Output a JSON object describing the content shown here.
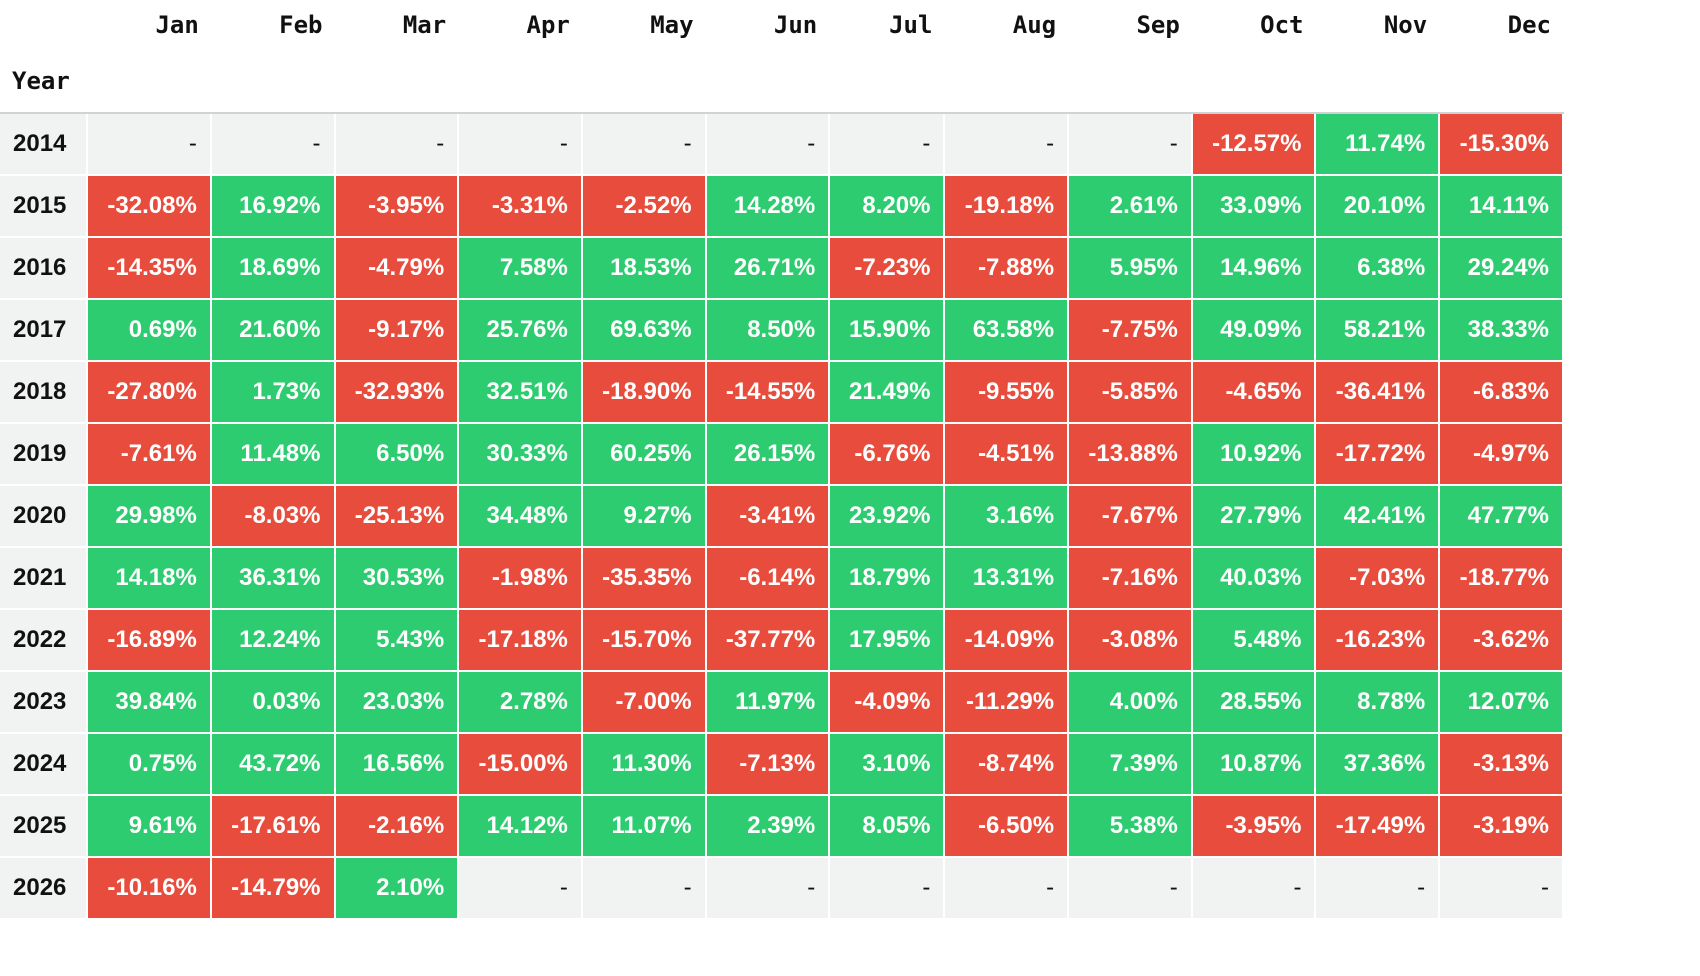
{
  "chart_data": {
    "type": "heatmap",
    "title": "",
    "index_label": "Year",
    "columns": [
      "Jan",
      "Feb",
      "Mar",
      "Apr",
      "May",
      "Jun",
      "Jul",
      "Aug",
      "Sep",
      "Oct",
      "Nov",
      "Dec"
    ],
    "missing_marker": "-",
    "unit": "%",
    "colors": {
      "positive": "#2ecc71",
      "negative": "#e74c3c",
      "empty": "#f1f3f2"
    },
    "rows": [
      {
        "year": "2014",
        "values": [
          null,
          null,
          null,
          null,
          null,
          null,
          null,
          null,
          null,
          -12.57,
          11.74,
          -15.3
        ]
      },
      {
        "year": "2015",
        "values": [
          -32.08,
          16.92,
          -3.95,
          -3.31,
          -2.52,
          14.28,
          8.2,
          -19.18,
          2.61,
          33.09,
          20.1,
          14.11
        ]
      },
      {
        "year": "2016",
        "values": [
          -14.35,
          18.69,
          -4.79,
          7.58,
          18.53,
          26.71,
          -7.23,
          -7.88,
          5.95,
          14.96,
          6.38,
          29.24
        ]
      },
      {
        "year": "2017",
        "values": [
          0.69,
          21.6,
          -9.17,
          25.76,
          69.63,
          8.5,
          15.9,
          63.58,
          -7.75,
          49.09,
          58.21,
          38.33
        ]
      },
      {
        "year": "2018",
        "values": [
          -27.8,
          1.73,
          -32.93,
          32.51,
          -18.9,
          -14.55,
          21.49,
          -9.55,
          -5.85,
          -4.65,
          -36.41,
          -6.83
        ]
      },
      {
        "year": "2019",
        "values": [
          -7.61,
          11.48,
          6.5,
          30.33,
          60.25,
          26.15,
          -6.76,
          -4.51,
          -13.88,
          10.92,
          -17.72,
          -4.97
        ]
      },
      {
        "year": "2020",
        "values": [
          29.98,
          -8.03,
          -25.13,
          34.48,
          9.27,
          -3.41,
          23.92,
          3.16,
          -7.67,
          27.79,
          42.41,
          47.77
        ]
      },
      {
        "year": "2021",
        "values": [
          14.18,
          36.31,
          30.53,
          -1.98,
          -35.35,
          -6.14,
          18.79,
          13.31,
          -7.16,
          40.03,
          -7.03,
          -18.77
        ]
      },
      {
        "year": "2022",
        "values": [
          -16.89,
          12.24,
          5.43,
          -17.18,
          -15.7,
          -37.77,
          17.95,
          -14.09,
          -3.08,
          5.48,
          -16.23,
          -3.62
        ]
      },
      {
        "year": "2023",
        "values": [
          39.84,
          0.03,
          23.03,
          2.78,
          -7.0,
          11.97,
          -4.09,
          -11.29,
          4.0,
          28.55,
          8.78,
          12.07
        ]
      },
      {
        "year": "2024",
        "values": [
          0.75,
          43.72,
          16.56,
          -15.0,
          11.3,
          -7.13,
          3.1,
          -8.74,
          7.39,
          10.87,
          37.36,
          -3.13
        ]
      },
      {
        "year": "2025",
        "values": [
          9.61,
          -17.61,
          -2.16,
          14.12,
          11.07,
          2.39,
          8.05,
          -6.5,
          5.38,
          -3.95,
          -17.49,
          -3.19
        ]
      },
      {
        "year": "2026",
        "values": [
          -10.16,
          -14.79,
          2.1,
          null,
          null,
          null,
          null,
          null,
          null,
          null,
          null,
          null
        ]
      }
    ]
  }
}
